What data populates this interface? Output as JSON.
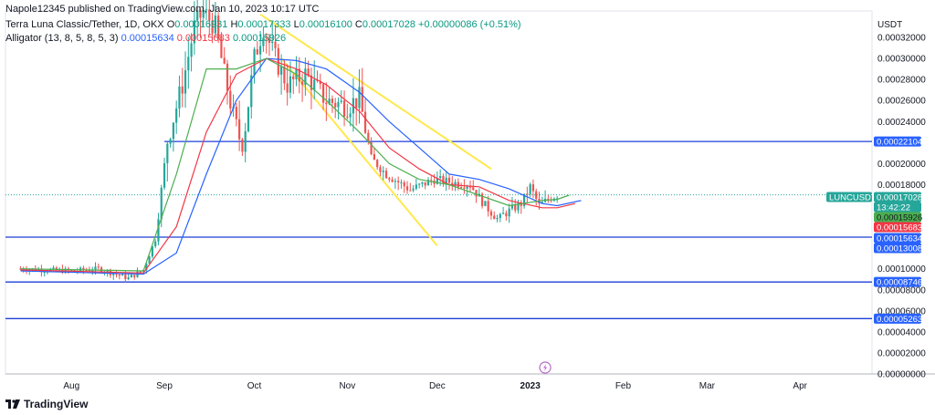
{
  "publisher_line": "Napole12345 published on TradingView.com, Jan 10, 2023 10:17 UTC",
  "legend": {
    "symbol": "Terra Luna Classic/Tether, 1D, OKX",
    "o_label": "O",
    "o": "0.00016931",
    "h_label": "H",
    "h": "0.00017333",
    "l_label": "L",
    "l": "0.00016100",
    "c_label": "C",
    "c": "0.00017028",
    "change": "+0.00000086 (+0.51%)",
    "alligator_label": "Alligator (13, 8, 5, 8, 5, 3)",
    "alligator_jaw": "0.00015634",
    "alligator_teeth": "0.00015683",
    "alligator_lips": "0.00015926"
  },
  "footer": {
    "brand": "TradingView"
  },
  "colors": {
    "up": "#26a69a",
    "down": "#ef5350",
    "jaw": "#2962ff",
    "teeth": "#f23645",
    "lips": "#4caf50",
    "hline": "#1e3fd8",
    "trend": "#ffe84d",
    "lilac": "#ba68c8"
  },
  "chart_data": {
    "type": "candlestick",
    "currency": "USDT",
    "ylim": [
      0,
      0.00034
    ],
    "y_ticks": [
      "0.00032000",
      "0.00030000",
      "0.00028000",
      "0.00026000",
      "0.00024000",
      "0.00020000",
      "0.00018000",
      "0.00010000",
      "0.00008000",
      "0.00006000",
      "0.00004000",
      "0.00002000",
      "0.00000000"
    ],
    "x_ticks": [
      "Aug",
      "Sep",
      "Oct",
      "Nov",
      "Dec",
      "2023",
      "Feb",
      "Mar",
      "Apr"
    ],
    "price_lines": [
      {
        "value": "0.00022104",
        "style": "solid"
      },
      {
        "value": "0.00013008",
        "style": "solid"
      },
      {
        "value": "0.00008746",
        "style": "solid"
      },
      {
        "value": "0.00005263",
        "style": "solid"
      },
      {
        "value": "0.00017028",
        "style": "dotted"
      }
    ],
    "axis_labels": [
      {
        "text": "0.00022104",
        "bg": "#2962ff",
        "fg": "#ffffff"
      },
      {
        "text": "LUNCUSDT",
        "bg": "#26a69a",
        "fg": "#ffffff",
        "side": "left"
      },
      {
        "text": "0.00017028",
        "bg": "#26a69a",
        "fg": "#ffffff"
      },
      {
        "text": "13:42:22",
        "bg": "#26a69a",
        "fg": "#ffffff"
      },
      {
        "text": "0.00015926",
        "bg": "#4caf50",
        "fg": "#131722"
      },
      {
        "text": "0.00015683",
        "bg": "#f23645",
        "fg": "#ffffff"
      },
      {
        "text": "0.00015634",
        "bg": "#2962ff",
        "fg": "#ffffff"
      },
      {
        "text": "0.00013008",
        "bg": "#2962ff",
        "fg": "#ffffff"
      },
      {
        "text": "0.00008746",
        "bg": "#2962ff",
        "fg": "#ffffff"
      },
      {
        "text": "0.00005263",
        "bg": "#2962ff",
        "fg": "#ffffff"
      }
    ],
    "price_path": [
      [
        "2022-07-15",
        0.0001
      ],
      [
        "2022-08-01",
        9.8e-05
      ],
      [
        "2022-08-10",
        0.0001
      ],
      [
        "2022-08-20",
        9.1e-05
      ],
      [
        "2022-08-25",
        9.9e-05
      ],
      [
        "2022-08-29",
        0.000128
      ],
      [
        "2022-09-02",
        0.000222
      ],
      [
        "2022-09-07",
        0.000275
      ],
      [
        "2022-09-11",
        0.00033
      ],
      [
        "2022-09-14",
        0.000345
      ],
      [
        "2022-09-18",
        0.00033
      ],
      [
        "2022-09-21",
        0.000285
      ],
      [
        "2022-09-24",
        0.000245
      ],
      [
        "2022-09-27",
        0.000215
      ],
      [
        "2022-10-01",
        0.0003
      ],
      [
        "2022-10-04",
        0.00033
      ],
      [
        "2022-10-08",
        0.0003
      ],
      [
        "2022-10-12",
        0.000275
      ],
      [
        "2022-10-18",
        0.000285
      ],
      [
        "2022-10-25",
        0.00026
      ],
      [
        "2022-11-01",
        0.000255
      ],
      [
        "2022-11-05",
        0.000262
      ],
      [
        "2022-11-09",
        0.000205
      ],
      [
        "2022-11-14",
        0.00019
      ],
      [
        "2022-11-22",
        0.000175
      ],
      [
        "2022-11-30",
        0.000185
      ],
      [
        "2022-12-06",
        0.000182
      ],
      [
        "2022-12-12",
        0.00018
      ],
      [
        "2022-12-17",
        0.00016
      ],
      [
        "2022-12-21",
        0.000148
      ],
      [
        "2022-12-25",
        0.000155
      ],
      [
        "2022-12-29",
        0.000162
      ],
      [
        "2023-01-01",
        0.000178
      ],
      [
        "2023-01-04",
        0.00016
      ],
      [
        "2023-01-08",
        0.000168
      ],
      [
        "2023-01-10",
        0.00017
      ]
    ],
    "alligator": {
      "jaw": [
        [
          "2022-07-15",
          9.8e-05
        ],
        [
          "2022-08-25",
          9.5e-05
        ],
        [
          "2022-09-05",
          0.000115
        ],
        [
          "2022-09-15",
          0.00019
        ],
        [
          "2022-09-25",
          0.00026
        ],
        [
          "2022-10-05",
          0.0003
        ],
        [
          "2022-10-15",
          0.000298
        ],
        [
          "2022-10-25",
          0.00029
        ],
        [
          "2022-11-05",
          0.000268
        ],
        [
          "2022-11-15",
          0.00024
        ],
        [
          "2022-11-25",
          0.000215
        ],
        [
          "2022-12-05",
          0.00019
        ],
        [
          "2022-12-15",
          0.000185
        ],
        [
          "2022-12-25",
          0.000176
        ],
        [
          "2023-01-05",
          0.000162
        ],
        [
          "2023-01-10",
          0.00016
        ],
        [
          "2023-01-18",
          0.000165
        ]
      ],
      "teeth": [
        [
          "2022-07-15",
          9.9e-05
        ],
        [
          "2022-08-25",
          9.6e-05
        ],
        [
          "2022-09-05",
          0.00014
        ],
        [
          "2022-09-15",
          0.00023
        ],
        [
          "2022-09-25",
          0.000285
        ],
        [
          "2022-10-05",
          0.0003
        ],
        [
          "2022-10-15",
          0.00029
        ],
        [
          "2022-10-25",
          0.000275
        ],
        [
          "2022-11-05",
          0.00025
        ],
        [
          "2022-11-15",
          0.000215
        ],
        [
          "2022-11-25",
          0.000195
        ],
        [
          "2022-12-05",
          0.00018
        ],
        [
          "2022-12-15",
          0.000178
        ],
        [
          "2022-12-25",
          0.000165
        ],
        [
          "2023-01-05",
          0.000158
        ],
        [
          "2023-01-10",
          0.000158
        ],
        [
          "2023-01-16",
          0.000162
        ]
      ],
      "lips": [
        [
          "2022-07-15",
          0.0001
        ],
        [
          "2022-08-25",
          9.8e-05
        ],
        [
          "2022-09-05",
          0.00019
        ],
        [
          "2022-09-15",
          0.00029
        ],
        [
          "2022-09-25",
          0.00029
        ],
        [
          "2022-10-05",
          0.0003
        ],
        [
          "2022-10-15",
          0.000285
        ],
        [
          "2022-10-25",
          0.00026
        ],
        [
          "2022-11-05",
          0.00023
        ],
        [
          "2022-11-15",
          0.0002
        ],
        [
          "2022-11-25",
          0.000185
        ],
        [
          "2022-12-05",
          0.00018
        ],
        [
          "2022-12-15",
          0.00017
        ],
        [
          "2022-12-25",
          0.00016
        ],
        [
          "2023-01-05",
          0.000165
        ],
        [
          "2023-01-10",
          0.000166
        ],
        [
          "2023-01-14",
          0.00017
        ]
      ]
    },
    "trendlines": [
      {
        "from": [
          "2022-10-03",
          0.000342
        ],
        "to": [
          "2022-12-19",
          0.000195
        ]
      },
      {
        "from": [
          "2022-10-10",
          0.0003
        ],
        "to": [
          "2022-12-01",
          0.000122
        ]
      }
    ]
  }
}
